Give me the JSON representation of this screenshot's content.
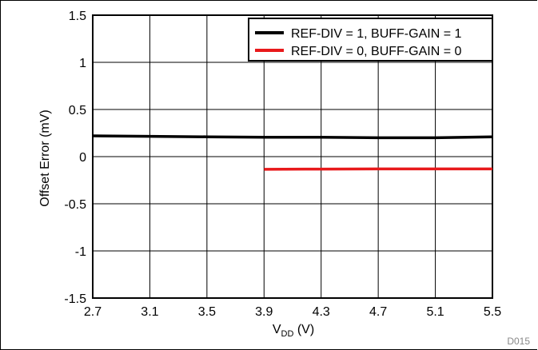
{
  "chart_data": {
    "type": "line",
    "title": "",
    "xlabel_main": "V",
    "xlabel_sub": "DD",
    "xlabel_unit": " (V)",
    "ylabel": "Offset Error (mV)",
    "xlim": [
      2.7,
      5.5
    ],
    "ylim": [
      -1.5,
      1.5
    ],
    "x_ticks": [
      2.7,
      3.1,
      3.5,
      3.9,
      4.3,
      4.7,
      5.1,
      5.5
    ],
    "x_tick_labels": [
      "2.7",
      "3.1",
      "3.5",
      "3.9",
      "4.3",
      "4.7",
      "5.1",
      "5.5"
    ],
    "y_ticks": [
      1.5,
      1,
      0.5,
      0,
      -0.5,
      -1,
      -1.5
    ],
    "y_tick_labels": [
      "1.5",
      "1",
      "0.5",
      "0",
      "-0.5",
      "-1",
      "-1.5"
    ],
    "grid": true,
    "legend_position": "top-right",
    "figure_id": "D015",
    "series": [
      {
        "name": "REF-DIV = 1, BUFF-GAIN = 1",
        "color": "#000000",
        "x": [
          2.7,
          3.1,
          3.5,
          3.9,
          4.3,
          4.7,
          5.1,
          5.5
        ],
        "y": [
          0.22,
          0.215,
          0.21,
          0.205,
          0.205,
          0.2,
          0.2,
          0.21
        ]
      },
      {
        "name": "REF-DIV = 0, BUFF-GAIN = 0",
        "color": "#e8191b",
        "x": [
          3.9,
          4.3,
          4.7,
          5.1,
          5.5
        ],
        "y": [
          -0.135,
          -0.132,
          -0.13,
          -0.13,
          -0.13
        ]
      }
    ]
  }
}
